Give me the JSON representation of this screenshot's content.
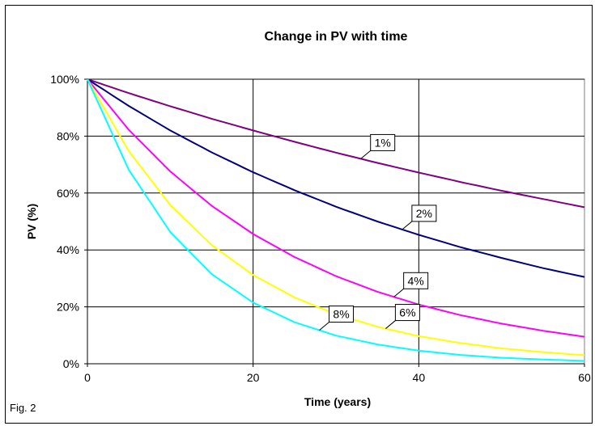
{
  "figure_label": "Fig. 2",
  "chart_data": {
    "type": "line",
    "title": "Change in PV with time",
    "xlabel": "Time (years)",
    "ylabel": "PV (%)",
    "xlim": [
      0,
      60
    ],
    "ylim": [
      0,
      100
    ],
    "x_ticks": [
      "0",
      "20",
      "40",
      "60"
    ],
    "y_ticks": [
      "0%",
      "20%",
      "40%",
      "60%",
      "80%",
      "100%"
    ],
    "grid": true,
    "x": [
      0,
      5,
      10,
      15,
      20,
      25,
      30,
      35,
      40,
      45,
      50,
      55,
      60
    ],
    "series": [
      {
        "name": "1%",
        "color": "#800080",
        "label_at": 33,
        "values": [
          100,
          95.1,
          90.5,
          86.1,
          82.0,
          78.0,
          74.2,
          70.6,
          67.2,
          63.9,
          60.8,
          57.9,
          55.0
        ]
      },
      {
        "name": "2%",
        "color": "#000080",
        "label_at": 38,
        "values": [
          100,
          90.6,
          82.0,
          74.3,
          67.3,
          61.0,
          55.2,
          50.0,
          45.3,
          41.0,
          37.2,
          33.6,
          30.5
        ]
      },
      {
        "name": "4%",
        "color": "#FF00FF",
        "label_at": 37,
        "values": [
          100,
          82.2,
          67.6,
          55.5,
          45.6,
          37.5,
          30.8,
          25.3,
          20.8,
          17.1,
          14.1,
          11.6,
          9.5
        ]
      },
      {
        "name": "6%",
        "color": "#FFFF00",
        "label_at": 36,
        "values": [
          100,
          74.7,
          55.8,
          41.7,
          31.2,
          23.3,
          17.4,
          13.0,
          9.7,
          7.3,
          5.4,
          4.1,
          3.0
        ]
      },
      {
        "name": "8%",
        "color": "#00FFFF",
        "label_at": 28,
        "values": [
          100,
          68.1,
          46.3,
          31.5,
          21.5,
          14.6,
          9.9,
          6.8,
          4.6,
          3.1,
          2.1,
          1.5,
          1.0
        ]
      }
    ]
  }
}
